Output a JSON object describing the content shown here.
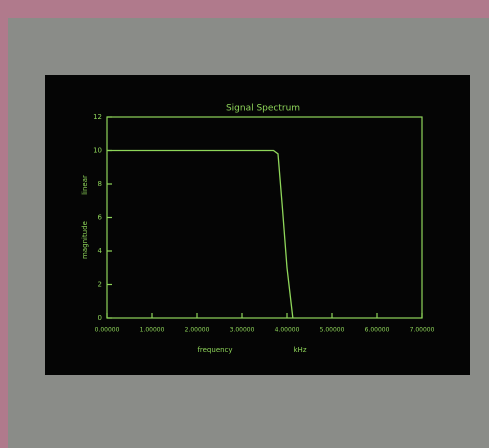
{
  "chart_data": {
    "type": "line",
    "title": "Signal Spectrum",
    "x_label": "frequency",
    "x_unit": "kHz",
    "y_label": "magnitude",
    "y_unit": "linear",
    "x": [
      0,
      3.7,
      3.8,
      3.9,
      4.0,
      4.13
    ],
    "series": [
      {
        "color": "#8fd65a",
        "values": [
          10,
          10,
          9.8,
          6.5,
          3,
          0
        ]
      }
    ],
    "xlim": [
      0,
      7
    ],
    "xticks": [
      {
        "value": 0,
        "label": "0.00000"
      },
      {
        "value": 1,
        "label": "1.00000"
      },
      {
        "value": 2,
        "label": "2.00000"
      },
      {
        "value": 3,
        "label": "3.00000"
      },
      {
        "value": 4,
        "label": "4.00000"
      },
      {
        "value": 5,
        "label": "5.00000"
      },
      {
        "value": 6,
        "label": "6.00000"
      },
      {
        "value": 7,
        "label": "7.00000"
      }
    ],
    "ylim": [
      0,
      12
    ],
    "yticks": [
      0,
      2,
      4,
      6,
      8,
      10,
      12
    ]
  }
}
